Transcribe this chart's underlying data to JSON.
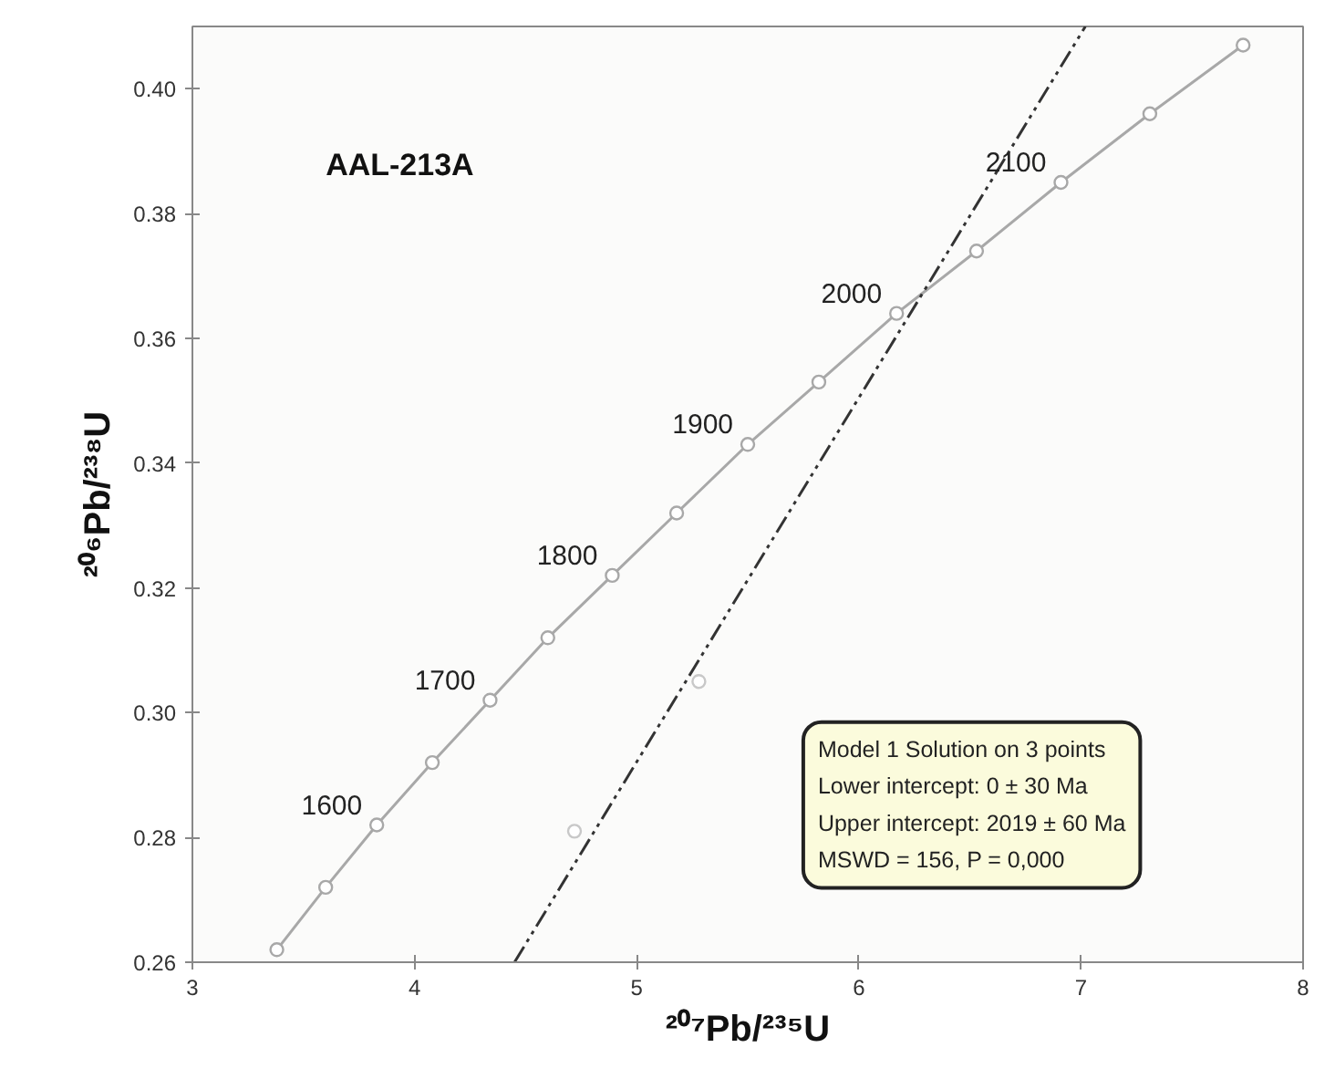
{
  "chart_data": {
    "type": "line",
    "xlabel": "²⁰⁷Pb/²³⁵U",
    "ylabel": "²⁰⁶Pb/²³⁸U",
    "xlim": [
      3,
      8
    ],
    "ylim": [
      0.26,
      0.41
    ],
    "xticks": [
      3,
      4,
      5,
      6,
      7,
      8
    ],
    "yticks": [
      {
        "value": 0.26,
        "label": "0.26"
      },
      {
        "value": 0.28,
        "label": "0.28"
      },
      {
        "value": 0.3,
        "label": "0.30"
      },
      {
        "value": 0.32,
        "label": "0.32"
      },
      {
        "value": 0.34,
        "label": "0.34"
      },
      {
        "value": 0.36,
        "label": "0.36"
      },
      {
        "value": 0.38,
        "label": "0.38"
      },
      {
        "value": 0.4,
        "label": "0.40"
      }
    ],
    "grid": false,
    "series": [
      {
        "color": "#a8a8a8",
        "marker": "circle",
        "line_style": "solid",
        "x": [
          3.38,
          3.6,
          3.83,
          4.08,
          4.34,
          4.6,
          4.89,
          5.18,
          5.5,
          5.82,
          6.17,
          6.53,
          6.91,
          7.31,
          7.73
        ],
        "values": [
          0.262,
          0.272,
          0.282,
          0.292,
          0.302,
          0.312,
          0.322,
          0.332,
          0.343,
          0.353,
          0.364,
          0.374,
          0.385,
          0.396,
          0.407
        ]
      },
      {
        "color": "#333333",
        "marker": "none",
        "line_style": "dashed",
        "x": [
          4.45,
          7.02
        ],
        "values": [
          0.26,
          0.41
        ]
      },
      {
        "type": "scatter",
        "color": "#c8c8c8",
        "marker": "circle",
        "x": [
          4.72,
          5.28
        ],
        "values": [
          0.281,
          0.305
        ]
      }
    ],
    "annotations": [
      "AAL-213A",
      "Model 1 Solution on 3 points",
      "Lower intercept: 0 ± 30 Ma",
      "Upper intercept: 2019 ± 60 Ma",
      "MSWD = 156, P = 0,000",
      {
        "text": "1600",
        "x": 3.83,
        "y": 0.282
      },
      {
        "text": "1700",
        "x": 4.34,
        "y": 0.302
      },
      {
        "text": "1800",
        "x": 4.89,
        "y": 0.322
      },
      {
        "text": "1900",
        "x": 5.5,
        "y": 0.343
      },
      {
        "text": "2000",
        "x": 6.17,
        "y": 0.364
      },
      {
        "text": "2100",
        "x": 6.91,
        "y": 0.385
      }
    ]
  }
}
